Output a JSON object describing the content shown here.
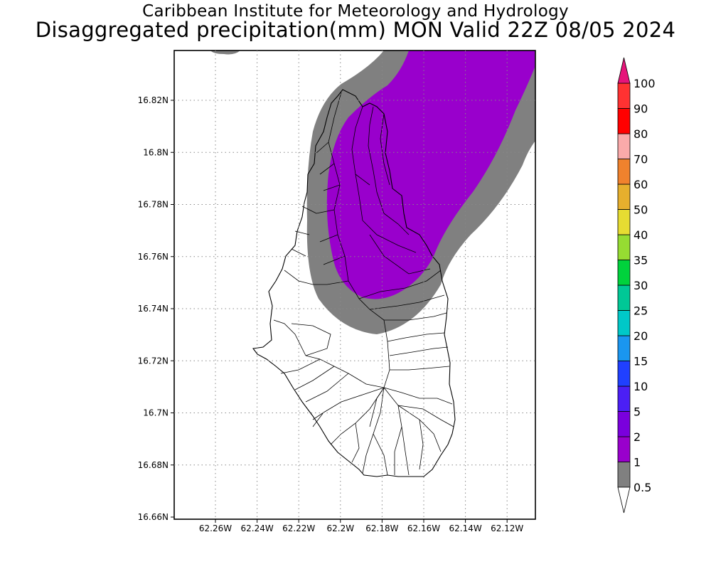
{
  "header": {
    "title": "Caribbean Institute for Meteorology and Hydrology",
    "subtitle": "Disaggregated precipitation(mm) MON Valid 22Z 08/05 2024"
  },
  "map": {
    "region_lat_range": [
      16.66,
      16.84
    ],
    "region_lon_range": [
      -62.28,
      -62.105
    ],
    "lat_ticks": [
      "16.66N",
      "16.68N",
      "16.7N",
      "16.72N",
      "16.74N",
      "16.76N",
      "16.78N",
      "16.8N",
      "16.82N"
    ],
    "lon_ticks": [
      "62.26W",
      "62.24W",
      "62.22W",
      "62.2W",
      "62.18W",
      "62.16W",
      "62.14W",
      "62.12W"
    ],
    "grid": true,
    "precip_fields": [
      {
        "category": "0.5-1",
        "color": "#808080"
      },
      {
        "category": "1-2",
        "color": "#9900cc"
      }
    ]
  },
  "colorbar": {
    "levels": [
      "0.5",
      "1",
      "2",
      "5",
      "10",
      "15",
      "20",
      "25",
      "30",
      "35",
      "40",
      "50",
      "60",
      "70",
      "80",
      "90",
      "100"
    ],
    "colors": [
      "#808080",
      "#9900cc",
      "#7a00dd",
      "#4b1ff5",
      "#2040ff",
      "#1a96f0",
      "#00c8c8",
      "#00c896",
      "#00d23c",
      "#96dc32",
      "#e6dc32",
      "#e6af2d",
      "#f0822d",
      "#faaaaa",
      "#ff0000",
      "#ff3232"
    ],
    "top_triangle_color": "#e6147a",
    "bottom_triangle_color": "#ffffff"
  }
}
